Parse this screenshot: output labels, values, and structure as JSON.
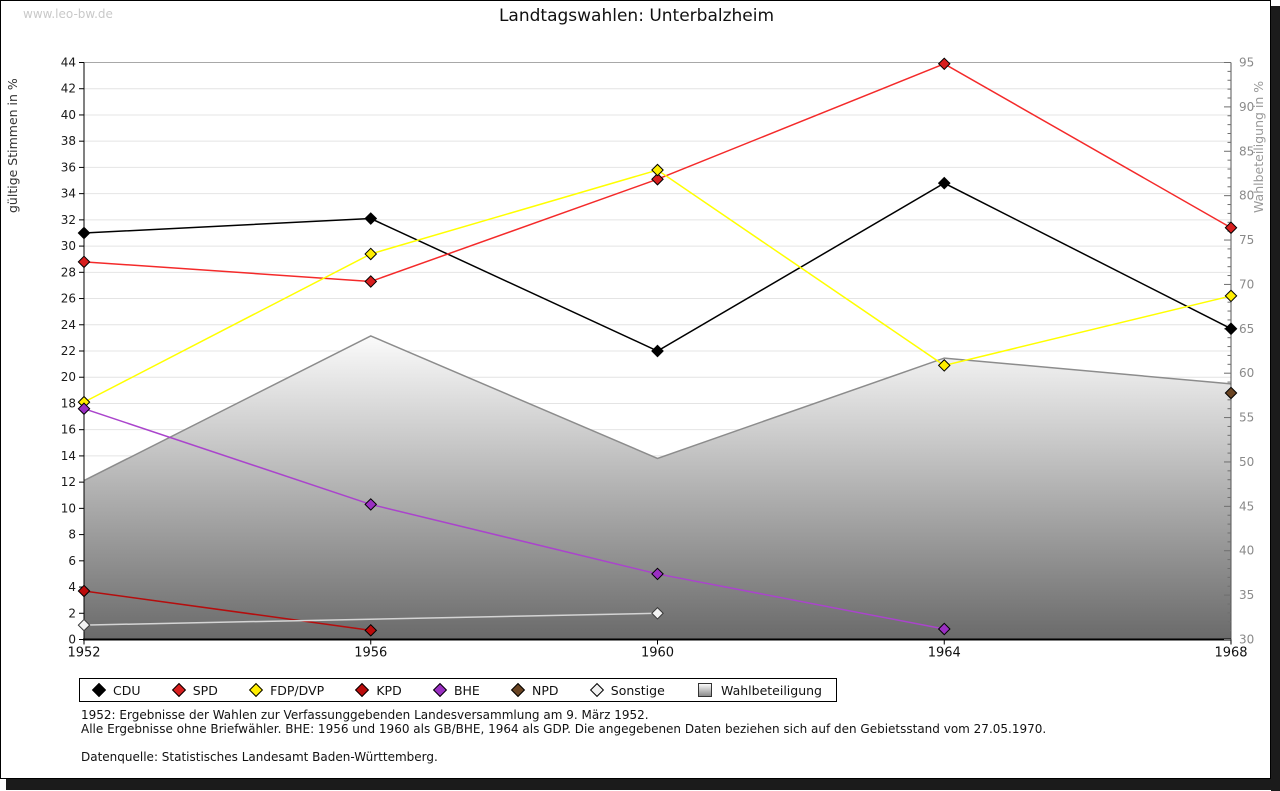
{
  "watermark": "www.leo-bw.de",
  "title": "Landtagswahlen: Unterbalzheim",
  "axes": {
    "left_label": "gültige Stimmen in %",
    "right_label": "Wahlbeteiligung in %",
    "left_min": 0,
    "left_max": 44,
    "left_step": 2,
    "right_min": 30,
    "right_max": 95,
    "right_major_step": 5,
    "right_minor_step": 1,
    "x_min": 1952,
    "x_max": 1968
  },
  "chart_data": {
    "type": "line",
    "title": "Landtagswahlen: Unterbalzheim",
    "x": [
      1952,
      1956,
      1960,
      1964,
      1968
    ],
    "xlabel": "",
    "ylabel_left": "gültige Stimmen in %",
    "ylabel_right": "Wahlbeteiligung in %",
    "ylim_left": [
      0,
      44
    ],
    "ylim_right": [
      30,
      95
    ],
    "grid": "horizontal",
    "legend_position": "bottom",
    "series": [
      {
        "name": "CDU",
        "axis": "left",
        "color": "#000000",
        "marker": "#000000",
        "points": [
          [
            1952,
            31.0
          ],
          [
            1956,
            32.1
          ],
          [
            1960,
            22.0
          ],
          [
            1964,
            34.8
          ],
          [
            1968,
            23.7
          ]
        ]
      },
      {
        "name": "SPD",
        "axis": "left",
        "color": "#f42a2a",
        "marker": "#d81e1e",
        "points": [
          [
            1952,
            28.8
          ],
          [
            1956,
            27.3
          ],
          [
            1960,
            35.1
          ],
          [
            1964,
            43.9
          ],
          [
            1968,
            31.4
          ]
        ]
      },
      {
        "name": "FDP/DVP",
        "axis": "left",
        "color": "#ffff00",
        "marker": "#ffee00",
        "points": [
          [
            1952,
            18.1
          ],
          [
            1956,
            29.4
          ],
          [
            1960,
            35.8
          ],
          [
            1964,
            20.9
          ],
          [
            1968,
            26.2
          ]
        ]
      },
      {
        "name": "KPD",
        "axis": "left",
        "color": "#b50d0d",
        "marker": "#bb0b0b",
        "points": [
          [
            1952,
            3.7
          ],
          [
            1956,
            0.7
          ]
        ]
      },
      {
        "name": "BHE",
        "axis": "left",
        "color": "#aa44cc",
        "marker": "#9a2fc2",
        "points": [
          [
            1952,
            17.6
          ],
          [
            1956,
            10.3
          ],
          [
            1960,
            5.0
          ],
          [
            1964,
            0.8
          ]
        ]
      },
      {
        "name": "NPD",
        "axis": "left",
        "color": "#6a4423",
        "marker": "#6a4423",
        "points": [
          [
            1968,
            18.8
          ]
        ]
      },
      {
        "name": "Sonstige",
        "axis": "left",
        "color": "#d4d4d4",
        "marker": "#f2f2f2",
        "marker_stroke": "#3a3a3a",
        "points": [
          [
            1952,
            1.1
          ],
          [
            1960,
            2.0
          ]
        ]
      }
    ],
    "area_series": {
      "name": "Wahlbeteiligung",
      "axis": "right",
      "stroke": "#8c8c8c",
      "fill_top": "#fbfbfb",
      "fill_bottom": "#6a6a6a",
      "points": [
        [
          1952,
          47.9
        ],
        [
          1956,
          64.2
        ],
        [
          1960,
          50.4
        ],
        [
          1964,
          61.7
        ],
        [
          1968,
          58.8
        ]
      ]
    }
  },
  "legend": {
    "items": [
      {
        "label": "CDU",
        "color": "#000000",
        "shape": "diamond"
      },
      {
        "label": "SPD",
        "color": "#d81e1e",
        "shape": "diamond"
      },
      {
        "label": "FDP/DVP",
        "color": "#ffee00",
        "shape": "diamond"
      },
      {
        "label": "KPD",
        "color": "#bb0b0b",
        "shape": "diamond"
      },
      {
        "label": "BHE",
        "color": "#9a2fc2",
        "shape": "diamond"
      },
      {
        "label": "NPD",
        "color": "#6a4423",
        "shape": "diamond"
      },
      {
        "label": "Sonstige",
        "color": "#f2f2f2",
        "shape": "diamond"
      },
      {
        "label": "Wahlbeteiligung",
        "color": "gradient",
        "shape": "square"
      }
    ]
  },
  "footnotes": {
    "line1": "1952: Ergebnisse der Wahlen zur Verfassunggebenden Landesversammlung am 9. März 1952.",
    "line2": "Alle Ergebnisse ohne Briefwähler. BHE: 1956 und 1960 als GB/BHE, 1964 als GDP. Die angegebenen Daten beziehen sich auf den Gebietsstand vom 27.05.1970.",
    "source": "Datenquelle: Statistisches Landesamt Baden-Württemberg."
  }
}
